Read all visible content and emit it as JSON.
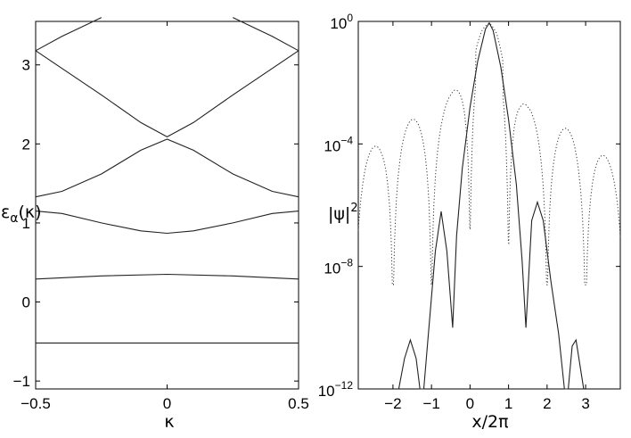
{
  "chart_data": [
    {
      "type": "line",
      "title": "",
      "xlabel": "κ",
      "ylabel": "ε",
      "ylabel_sub": "α",
      "ylabel_arg": "(κ)",
      "xlim": [
        -0.5,
        0.5
      ],
      "ylim": [
        -1.1,
        3.55
      ],
      "grid": false,
      "x_ticks": [
        -0.5,
        0,
        0.5
      ],
      "x_tick_labels": [
        "−0.5",
        "0",
        "0.5"
      ],
      "y_ticks": [
        -1,
        0,
        1,
        2,
        3
      ],
      "y_tick_labels": [
        "−1",
        "0",
        "1",
        "2",
        "3"
      ],
      "series": [
        {
          "x": [
            -0.5,
            0,
            0.5
          ],
          "y": [
            -0.52,
            -0.52,
            -0.52
          ]
        },
        {
          "x": [
            -0.5,
            -0.25,
            0,
            0.25,
            0.5
          ],
          "y": [
            0.29,
            0.33,
            0.35,
            0.33,
            0.29
          ]
        },
        {
          "x": [
            -0.5,
            -0.4,
            -0.25,
            -0.1,
            0,
            0.1,
            0.25,
            0.4,
            0.5
          ],
          "y": [
            1.15,
            1.12,
            1.0,
            0.9,
            0.87,
            0.9,
            1.0,
            1.12,
            1.15
          ]
        },
        {
          "x": [
            -0.5,
            -0.4,
            -0.25,
            -0.1,
            0,
            0.1,
            0.25,
            0.4,
            0.5
          ],
          "y": [
            1.33,
            1.4,
            1.62,
            1.92,
            2.06,
            1.92,
            1.62,
            1.4,
            1.33
          ]
        },
        {
          "x": [
            -0.5,
            -0.25,
            -0.1,
            0,
            0.1,
            0.25,
            0.5
          ],
          "y": [
            3.18,
            2.62,
            2.27,
            2.09,
            2.27,
            2.62,
            3.18
          ]
        },
        {
          "x": [
            -0.5,
            -0.4,
            -0.3,
            -0.25
          ],
          "y": [
            3.18,
            3.36,
            3.52,
            3.6
          ]
        },
        {
          "x": [
            0.25,
            0.3,
            0.4,
            0.5
          ],
          "y": [
            3.6,
            3.52,
            3.36,
            3.18
          ]
        }
      ]
    },
    {
      "type": "line",
      "title": "",
      "xlabel": "x/2π",
      "ylabel": "|ψ|",
      "ylabel_sup": "2",
      "xlim": [
        -2.9,
        3.9
      ],
      "ylim_log10": [
        -12,
        0
      ],
      "y_scale": "log",
      "grid": false,
      "x_ticks": [
        -2,
        -1,
        0,
        1,
        2,
        3
      ],
      "x_tick_labels": [
        "−2",
        "−1",
        "0",
        "1",
        "2",
        "3"
      ],
      "y_ticks_log10": [
        -12,
        -8,
        -4,
        0
      ],
      "y_tick_base": "10",
      "y_tick_exponents": [
        "−12",
        "−8",
        "−4",
        "0"
      ],
      "series": [
        {
          "style": "solid",
          "x": [
            -1.85,
            -1.7,
            -1.55,
            -1.4,
            -1.3,
            -1.2,
            -1.1,
            -0.9,
            -0.75,
            -0.6,
            -0.45,
            -0.35,
            -0.2,
            0,
            0.2,
            0.4,
            0.5,
            0.6,
            0.8,
            1.0,
            1.2,
            1.35,
            1.45,
            1.6,
            1.75,
            1.9,
            2.1,
            2.3,
            2.45,
            2.55,
            2.65,
            2.75,
            2.85,
            2.95
          ],
          "log10_y": [
            -12,
            -11,
            -10.4,
            -11,
            -12,
            -12,
            -10.5,
            -7.5,
            -6.2,
            -7.5,
            -10,
            -7,
            -4.8,
            -2.8,
            -1.3,
            -0.25,
            -0.05,
            -0.3,
            -1.5,
            -3.2,
            -5.3,
            -7.8,
            -10,
            -6.5,
            -5.9,
            -6.5,
            -8.5,
            -10.2,
            -12,
            -12,
            -10.6,
            -10.4,
            -11.2,
            -12
          ]
        },
        {
          "style": "dotted",
          "envelope_x": [
            -2.9,
            -2.7,
            -2.5,
            -2.3,
            -2.1,
            -1.9,
            -1.7,
            -1.5,
            -1.3,
            -1.1,
            -0.9,
            -0.7,
            -0.5,
            -0.3,
            -0.1,
            0.1,
            0.3,
            0.5,
            0.7,
            0.9,
            1.1,
            1.3,
            1.5,
            1.7,
            1.9,
            2.1,
            2.3,
            2.5,
            2.7,
            2.9,
            3.1,
            3.3,
            3.5,
            3.7,
            3.9
          ],
          "envelope_log10_y": [
            -4.6,
            -4.3,
            -4.1,
            -3.9,
            -3.6,
            -3.4,
            -3.3,
            -3.2,
            -3.1,
            -3.0,
            -2.9,
            -2.7,
            -2.4,
            -1.9,
            -1.3,
            -0.6,
            -0.2,
            -0.05,
            -0.3,
            -1.0,
            -1.8,
            -2.4,
            -2.8,
            -3.0,
            -3.2,
            -3.3,
            -3.4,
            -3.5,
            -3.6,
            -3.8,
            -4.0,
            -4.2,
            -4.4,
            -4.6,
            -4.8
          ]
        }
      ]
    }
  ]
}
